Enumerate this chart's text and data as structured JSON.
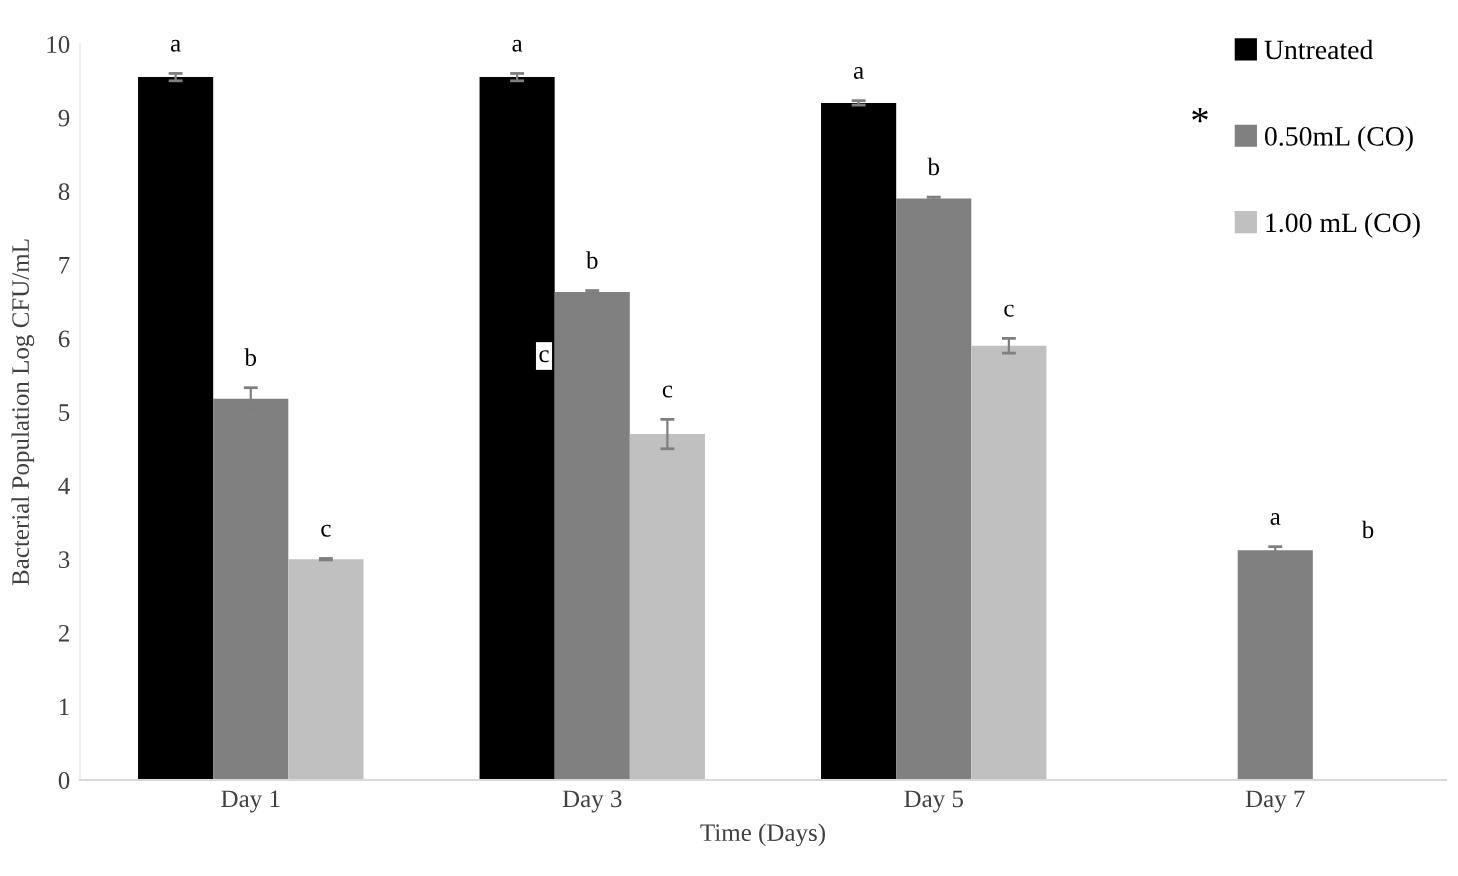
{
  "chart_data": {
    "type": "bar",
    "xlabel": "Time (Days)",
    "ylabel": "Bacterial Population Log CFU/mL",
    "categories": [
      "Day 1",
      "Day 3",
      "Day 5",
      "Day 7"
    ],
    "series": [
      {
        "name": "Untreated",
        "color": "#000000",
        "values": [
          9.55,
          9.55,
          9.2,
          null
        ],
        "errors": [
          0.05,
          0.05,
          0.03,
          null
        ],
        "value_labels": [
          "a",
          "a",
          "a",
          null
        ]
      },
      {
        "name": "0.50mL (CO)",
        "color": "#808080",
        "values": [
          5.18,
          6.63,
          7.9,
          3.12
        ],
        "errors": [
          0.15,
          0.02,
          0.02,
          0.05
        ],
        "value_labels": [
          "b",
          "b",
          "b",
          "a"
        ]
      },
      {
        "name": "1.00 mL (CO)",
        "color": "#c0c0c0",
        "values": [
          3.0,
          4.7,
          5.9,
          null
        ],
        "errors": [
          0.01,
          0.2,
          0.1,
          null
        ],
        "value_labels": [
          "c",
          "c",
          "c",
          null
        ]
      }
    ],
    "annotations": [
      "c",
      "b",
      "*"
    ],
    "ylim": [
      0,
      10
    ],
    "yticks": [
      0,
      1,
      2,
      3,
      4,
      5,
      6,
      7,
      8,
      9,
      10
    ],
    "grid": false,
    "legend": "top right"
  }
}
